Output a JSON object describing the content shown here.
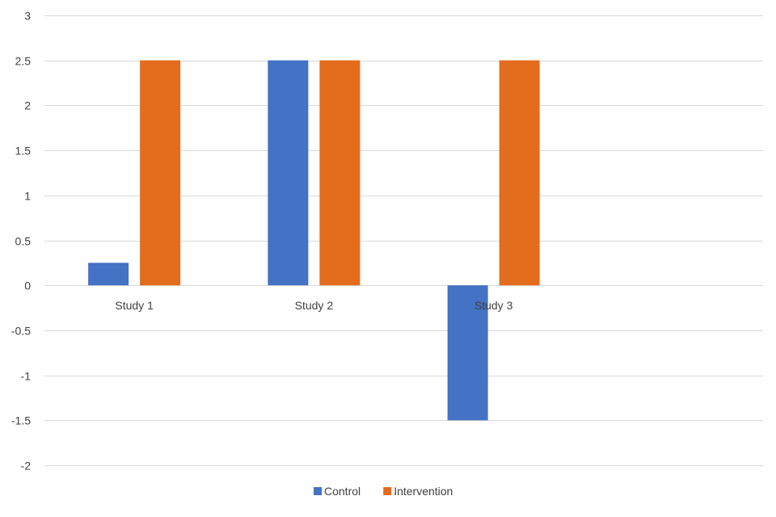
{
  "chart_data": {
    "type": "bar",
    "title": "",
    "xlabel": "",
    "ylabel": "",
    "categories": [
      "Study 1",
      "Study 2",
      "Study 3"
    ],
    "series": [
      {
        "name": "Control",
        "values": [
          0.25,
          2.5,
          -1.5
        ],
        "color": "#4472C4"
      },
      {
        "name": "Intervention",
        "values": [
          2.5,
          2.5,
          2.5
        ],
        "color": "#E46C1D"
      }
    ],
    "ylim": [
      -2,
      3
    ],
    "yticks": [
      "-2",
      "-1.5",
      "-1",
      "-0.5",
      "0",
      "0.5",
      "1",
      "1.5",
      "2",
      "2.5",
      "3"
    ],
    "grid": true,
    "legend_position": "bottom",
    "grid_color": "#D9D9D9",
    "text_color": "#404040"
  }
}
